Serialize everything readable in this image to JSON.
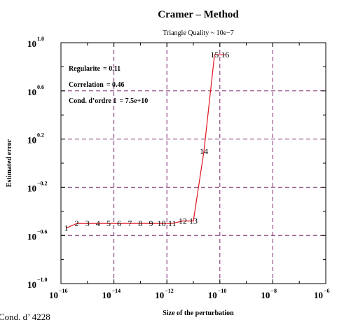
{
  "chart_data": {
    "type": "line",
    "title": "Cramer – Method",
    "subtitle": "Triangle Quality ~ 10e−7",
    "xlabel": "Size of the perturbation",
    "ylabel": "Estimated error",
    "x_scale": "log",
    "y_scale": "log",
    "xlim": [
      1e-16,
      1e-06
    ],
    "ylim": [
      0.1,
      10
    ],
    "grid": true,
    "x_ticks": [
      {
        "base": "10",
        "exp": "−16",
        "value": 1e-16
      },
      {
        "base": "10",
        "exp": "−14",
        "value": 1e-14
      },
      {
        "base": "10",
        "exp": "−12",
        "value": 1e-12
      },
      {
        "base": "10",
        "exp": "−10",
        "value": 1e-10
      },
      {
        "base": "10",
        "exp": "−8",
        "value": 1e-08
      },
      {
        "base": "10",
        "exp": "−6",
        "value": 1e-06
      }
    ],
    "y_ticks": [
      {
        "base": "10",
        "exp": "1.0",
        "value": 10
      },
      {
        "base": "10",
        "exp": "0.6",
        "value": 3.981
      },
      {
        "base": "10",
        "exp": "0.2",
        "value": 1.585
      },
      {
        "base": "10",
        "exp": "−0.2",
        "value": 0.631
      },
      {
        "base": "10",
        "exp": "−0.6",
        "value": 0.251
      },
      {
        "base": "10",
        "exp": "−1.0",
        "value": 0.1
      }
    ],
    "annotations": [
      {
        "label": "Regularite",
        "value": "= 0.11"
      },
      {
        "label": "Correlation",
        "value": "= 0.46"
      },
      {
        "label": "Cond. d’ordre 1",
        "value": "= 7.5e+10"
      }
    ],
    "series": [
      {
        "color": "#e0141e",
        "points": [
          {
            "label": "1",
            "x": 1.585e-16,
            "y": 0.289
          },
          {
            "label": "2",
            "x": 3.981e-16,
            "y": 0.316
          },
          {
            "label": "3",
            "x": 1e-15,
            "y": 0.316
          },
          {
            "label": "4",
            "x": 2.512e-15,
            "y": 0.316
          },
          {
            "label": "5",
            "x": 6.31e-15,
            "y": 0.316
          },
          {
            "label": "6",
            "x": 1.585e-14,
            "y": 0.316
          },
          {
            "label": "7",
            "x": 3.981e-14,
            "y": 0.316
          },
          {
            "label": "8",
            "x": 1e-13,
            "y": 0.316
          },
          {
            "label": "9",
            "x": 2.512e-13,
            "y": 0.316
          },
          {
            "label": "10",
            "x": 6.31e-13,
            "y": 0.316
          },
          {
            "label": "11",
            "x": 1.585e-12,
            "y": 0.316
          },
          {
            "label": "12",
            "x": 3.981e-12,
            "y": 0.331
          },
          {
            "label": "13",
            "x": 1e-11,
            "y": 0.331
          },
          {
            "label": "14",
            "x": 2.512e-11,
            "y": 1.259
          },
          {
            "label": "15",
            "x": 6.31e-11,
            "y": 7.943
          },
          {
            "label": "16",
            "x": 1.585e-10,
            "y": 7.943
          }
        ]
      }
    ]
  },
  "footer_text": "Cond. d’ 4228"
}
